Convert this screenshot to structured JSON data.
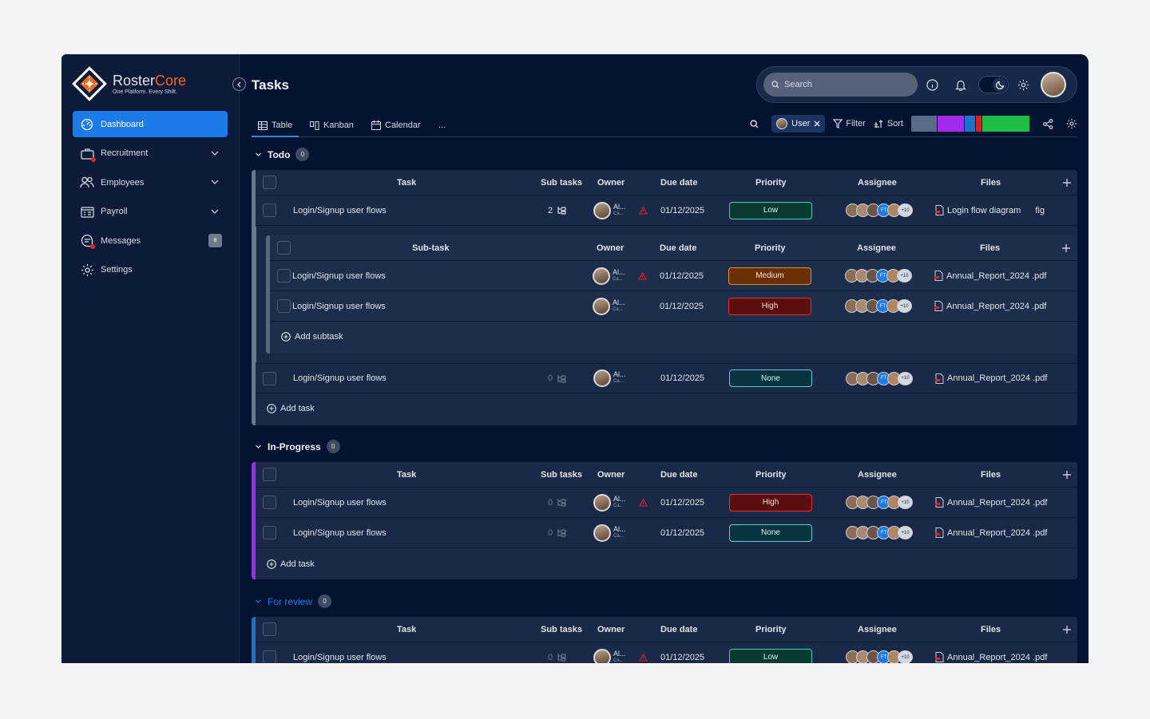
{
  "brand": {
    "name_a": "Roster",
    "name_b": "Core",
    "tagline": "One Platform. Every Shift."
  },
  "nav": [
    {
      "label": "Dashboard",
      "icon": "dashboard-icon",
      "active": true
    },
    {
      "label": "Recruitment",
      "icon": "briefcase-icon",
      "dropdown": true,
      "dot": true
    },
    {
      "label": "Employees",
      "icon": "users-icon",
      "dropdown": true
    },
    {
      "label": "Payroll",
      "icon": "payroll-icon",
      "dropdown": true
    },
    {
      "label": "Messages",
      "icon": "chat-icon",
      "badge": "8",
      "dot": true
    },
    {
      "label": "Settings",
      "icon": "gear-icon"
    }
  ],
  "header": {
    "title": "Tasks",
    "search_placeholder": "Search"
  },
  "tabs": [
    {
      "label": "Table",
      "icon": "table-icon",
      "active": true
    },
    {
      "label": "Kanban",
      "icon": "kanban-icon"
    },
    {
      "label": "Calendar",
      "icon": "calendar-icon"
    },
    {
      "label": "..."
    }
  ],
  "toolbar": {
    "chip": "User",
    "filter": "Filter",
    "sort": "Sort",
    "color_segments": [
      "#5b6a86",
      "#a12cf0",
      "#1a74c9",
      "#e02020",
      "#1bbf45"
    ]
  },
  "columns": {
    "task": "Task",
    "subtasks": "Sub tasks",
    "owner": "Owner",
    "due": "Due date",
    "priority": "Priority",
    "assignee": "Assignee",
    "files": "Files",
    "subtask": "Sub-task"
  },
  "owner": {
    "name": "Al...",
    "sub": "Ca..."
  },
  "assignee_initials": "FT",
  "assignee_more": "+10",
  "add_task": "Add task",
  "add_subtask": "Add subtask",
  "groups": {
    "todo": {
      "title": "Todo",
      "count": "0",
      "color": "#6b778c"
    },
    "inprogress": {
      "title": "In-Progress",
      "count": "0",
      "color": "#a12cf0"
    },
    "review": {
      "title": "For review",
      "count": "0",
      "color": "#1a74c9"
    }
  },
  "rows": {
    "todo1": {
      "task": "Login/Signup user flows",
      "subtasks": "2",
      "due": "01/12/2025",
      "priority": "Low",
      "file": "Login flow diagram",
      "file_ext": "fig"
    },
    "sub1": {
      "task": "Login/Signup user flows",
      "due": "01/12/2025",
      "priority": "Medium",
      "file": "Annual_Report_2024 .pdf"
    },
    "sub2": {
      "task": "Login/Signup user flows",
      "due": "01/12/2025",
      "priority": "High",
      "file": "Annual_Report_2024 .pdf"
    },
    "todo2": {
      "task": "Login/Signup user flows",
      "subtasks": "0",
      "due": "01/12/2025",
      "priority": "None",
      "file": "Annual_Report_2024 .pdf"
    },
    "ip1": {
      "task": "Login/Signup user flows",
      "subtasks": "0",
      "due": "01/12/2025",
      "priority": "High",
      "file": "Annual_Report_2024 .pdf"
    },
    "ip2": {
      "task": "Login/Signup user flows",
      "subtasks": "0",
      "due": "01/12/2025",
      "priority": "None",
      "file": "Annual_Report_2024 .pdf"
    },
    "rv1": {
      "task": "Login/Signup user flows",
      "subtasks": "0",
      "due": "01/12/2025",
      "priority": "Low",
      "file": "Annual_Report_2024 .pdf"
    }
  }
}
